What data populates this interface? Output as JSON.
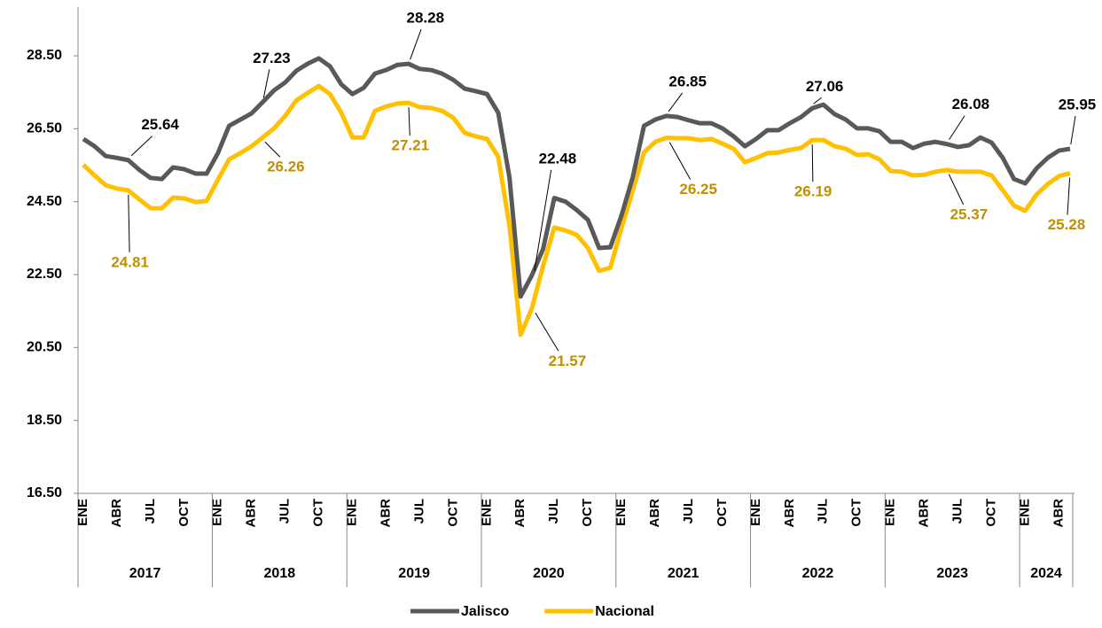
{
  "chart_data": {
    "type": "line",
    "categories": [
      "ENE",
      null,
      null,
      "ABR",
      null,
      null,
      "JUL",
      null,
      null,
      "OCT",
      null,
      null,
      "ENE",
      null,
      null,
      "ABR",
      null,
      null,
      "JUL",
      null,
      null,
      "OCT",
      null,
      null,
      "ENE",
      null,
      null,
      "ABR",
      null,
      null,
      "JUL",
      null,
      null,
      "OCT",
      null,
      null,
      "ENE",
      null,
      null,
      "ABR",
      null,
      null,
      "JUL",
      null,
      null,
      "OCT",
      null,
      null,
      "ENE",
      null,
      null,
      "ABR",
      null,
      null,
      "JUL",
      null,
      null,
      "OCT",
      null,
      null,
      "ENE",
      null,
      null,
      "ABR",
      null,
      null,
      "JUL",
      null,
      null,
      "OCT",
      null,
      null,
      "ENE",
      null,
      null,
      "ABR",
      null,
      null,
      "JUL",
      null,
      null,
      "OCT",
      null,
      null,
      "ENE",
      null,
      null,
      "ABR",
      null
    ],
    "years": [
      "2017",
      "2018",
      "2019",
      "2020",
      "2021",
      "2022",
      "2023",
      "2024"
    ],
    "series": [
      {
        "name": "Jalisco",
        "color": "#595959",
        "label_color": "#000000",
        "values": [
          26.22,
          26.02,
          25.75,
          25.7,
          25.64,
          25.37,
          25.15,
          25.12,
          25.44,
          25.39,
          25.27,
          25.27,
          25.83,
          26.58,
          26.75,
          26.92,
          27.23,
          27.55,
          27.77,
          28.09,
          28.28,
          28.43,
          28.21,
          27.72,
          27.45,
          27.62,
          28.01,
          28.11,
          28.25,
          28.28,
          28.14,
          28.11,
          28.01,
          27.84,
          27.6,
          27.53,
          27.45,
          26.94,
          25.17,
          21.9,
          22.48,
          23.2,
          24.6,
          24.5,
          24.27,
          24.0,
          23.23,
          23.25,
          24.13,
          25.17,
          26.58,
          26.75,
          26.85,
          26.82,
          26.73,
          26.65,
          26.65,
          26.51,
          26.29,
          26.02,
          26.22,
          26.46,
          26.46,
          26.65,
          26.82,
          27.06,
          27.16,
          26.9,
          26.75,
          26.51,
          26.51,
          26.43,
          26.14,
          26.14,
          25.97,
          26.09,
          26.14,
          26.08,
          26.0,
          26.05,
          26.26,
          26.12,
          25.7,
          25.12,
          25.0,
          25.41,
          25.7,
          25.9,
          25.95
        ],
        "value_labels": [
          null,
          null,
          null,
          null,
          "25.64",
          null,
          null,
          null,
          null,
          null,
          null,
          null,
          null,
          null,
          null,
          null,
          "27.23",
          null,
          null,
          null,
          null,
          null,
          null,
          null,
          null,
          null,
          null,
          null,
          null,
          "28.28",
          null,
          null,
          null,
          null,
          null,
          null,
          null,
          null,
          null,
          null,
          "22.48",
          null,
          null,
          null,
          null,
          null,
          null,
          null,
          null,
          null,
          null,
          null,
          "26.85",
          null,
          null,
          null,
          null,
          null,
          null,
          null,
          null,
          null,
          null,
          null,
          null,
          "27.06",
          null,
          null,
          null,
          null,
          null,
          null,
          null,
          null,
          null,
          null,
          null,
          "26.08",
          null,
          null,
          null,
          null,
          null,
          null,
          null,
          null,
          null,
          null,
          "25.95"
        ]
      },
      {
        "name": "Nacional",
        "color": "#FFC000",
        "label_color": "#BF9000",
        "values": [
          25.51,
          25.22,
          24.95,
          24.86,
          24.81,
          24.56,
          24.32,
          24.32,
          24.61,
          24.59,
          24.49,
          24.52,
          25.1,
          25.66,
          25.83,
          26.02,
          26.26,
          26.51,
          26.85,
          27.28,
          27.48,
          27.67,
          27.45,
          26.94,
          26.26,
          26.26,
          26.99,
          27.11,
          27.19,
          27.21,
          27.09,
          27.07,
          26.99,
          26.8,
          26.39,
          26.29,
          26.22,
          25.73,
          23.84,
          20.85,
          21.57,
          22.74,
          23.79,
          23.71,
          23.59,
          23.23,
          22.6,
          22.69,
          23.79,
          24.81,
          25.85,
          26.14,
          26.25,
          26.24,
          26.24,
          26.19,
          26.22,
          26.09,
          25.95,
          25.58,
          25.7,
          25.83,
          25.85,
          25.92,
          25.97,
          26.19,
          26.19,
          26.02,
          25.95,
          25.78,
          25.8,
          25.66,
          25.34,
          25.32,
          25.22,
          25.24,
          25.32,
          25.37,
          25.32,
          25.32,
          25.32,
          25.22,
          24.81,
          24.39,
          24.25,
          24.69,
          24.98,
          25.2,
          25.28
        ],
        "value_labels": [
          null,
          null,
          null,
          null,
          "24.81",
          null,
          null,
          null,
          null,
          null,
          null,
          null,
          null,
          null,
          null,
          null,
          "26.26",
          null,
          null,
          null,
          null,
          null,
          null,
          null,
          null,
          null,
          null,
          null,
          null,
          "27.21",
          null,
          null,
          null,
          null,
          null,
          null,
          null,
          null,
          null,
          null,
          "21.57",
          null,
          null,
          null,
          null,
          null,
          null,
          null,
          null,
          null,
          null,
          null,
          "26.25",
          null,
          null,
          null,
          null,
          null,
          null,
          null,
          null,
          null,
          null,
          null,
          null,
          "26.19",
          null,
          null,
          null,
          null,
          null,
          null,
          null,
          null,
          null,
          null,
          null,
          "25.37",
          null,
          null,
          null,
          null,
          null,
          null,
          null,
          null,
          null,
          null,
          "25.28"
        ]
      }
    ],
    "ylim": [
      16.5,
      28.5
    ],
    "yticks": [
      {
        "value": 16.5,
        "label": "16.50"
      },
      {
        "value": 18.5,
        "label": "18.50"
      },
      {
        "value": 20.5,
        "label": "20.50"
      },
      {
        "value": 22.5,
        "label": "22.50"
      },
      {
        "value": 24.5,
        "label": "24.50"
      },
      {
        "value": 26.5,
        "label": "26.50"
      },
      {
        "value": 28.5,
        "label": "28.50"
      }
    ],
    "grid": false,
    "legend": "bottom"
  }
}
